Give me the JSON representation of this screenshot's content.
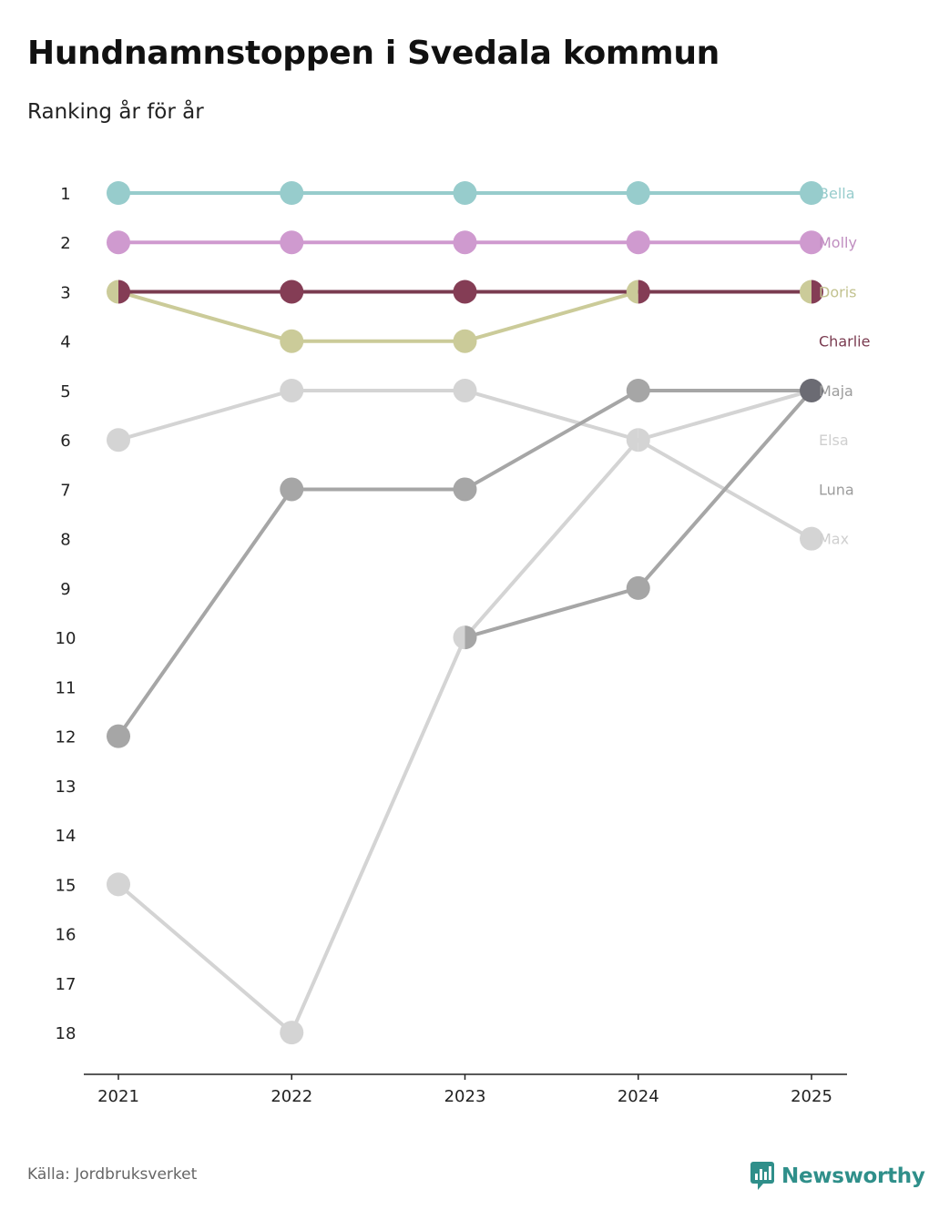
{
  "title": "Hundnamnstoppen i Svedala kommun",
  "subtitle": "Ranking år för år",
  "source": "Källa: Jordbruksverket",
  "brand": "Newsworthy",
  "chart_data": {
    "type": "line",
    "title": "Hundnamnstoppen i Svedala kommun",
    "subtitle": "Ranking år för år",
    "xlabel": "",
    "ylabel": "",
    "x": [
      "2021",
      "2022",
      "2023",
      "2024",
      "2025"
    ],
    "y_ticks": [
      1,
      2,
      3,
      4,
      5,
      6,
      7,
      8,
      9,
      10,
      11,
      12,
      13,
      14,
      15,
      16,
      17,
      18
    ],
    "ylim": [
      1,
      18
    ],
    "y_inverted": true,
    "grid": false,
    "legend": "right end labels",
    "series": [
      {
        "name": "Bella",
        "values": [
          1,
          1,
          1,
          1,
          1
        ],
        "color": "#97cccc",
        "label_color": "#97cccc",
        "marker_color": "#97cccc"
      },
      {
        "name": "Molly",
        "values": [
          2,
          2,
          2,
          2,
          2
        ],
        "color": "#cf9acf",
        "label_color": "#c08ec0",
        "marker_color": "#cf9acf"
      },
      {
        "name": "Doris",
        "values": [
          3,
          4,
          4,
          3,
          3
        ],
        "color": "#cbcb99",
        "label_color": "#c2c28f",
        "marker_color": "#cbcb99"
      },
      {
        "name": "Charlie",
        "values": [
          3,
          3,
          3,
          3,
          3
        ],
        "color": "#7a3b50",
        "label_color": "#7a3b50",
        "marker_color": "#843d55"
      },
      {
        "name": "Maja",
        "values": [
          12,
          7,
          7,
          5,
          5
        ],
        "color": "#a6a6a6",
        "label_color": "#9c9c9c",
        "marker_color": "#a6a6a6"
      },
      {
        "name": "Elsa",
        "values": [
          15,
          18,
          10,
          6,
          5
        ],
        "color": "#d4d4d4",
        "label_color": "#cfcfcf",
        "marker_color": "#d4d4d4"
      },
      {
        "name": "Luna",
        "values": [
          null,
          null,
          10,
          9,
          5
        ],
        "color": "#a6a6a6",
        "label_color": "#9c9c9c",
        "marker_color": "#a6a6a6"
      },
      {
        "name": "Max",
        "values": [
          6,
          5,
          5,
          6,
          8
        ],
        "color": "#d4d4d4",
        "label_color": "#cfcfcf",
        "marker_color": "#d4d4d4"
      }
    ],
    "shared_point_color": "#6b6b73"
  }
}
